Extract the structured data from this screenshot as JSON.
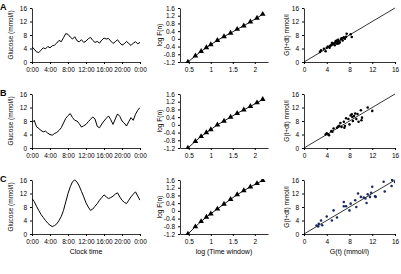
{
  "chart_data": [
    {
      "type": "line",
      "title": "A",
      "y_label": "Glucose (mmol/l)",
      "color": "#000000",
      "x": [
        0,
        0.5,
        1,
        1.5,
        2,
        2.5,
        3,
        3.5,
        4,
        4.5,
        5,
        5.5,
        6,
        6.5,
        7,
        7.5,
        8,
        8.5,
        9,
        9.5,
        10,
        10.5,
        11,
        11.5,
        12,
        12.5,
        13,
        13.5,
        14,
        14.5,
        15,
        15.5,
        16,
        16.5,
        17,
        17.5,
        18,
        18.5,
        19,
        19.5,
        20,
        20.5,
        21,
        21.5,
        22,
        22.5,
        23,
        23.5,
        24
      ],
      "values": [
        4.5,
        3.8,
        3.0,
        2.8,
        3.5,
        4.2,
        3.9,
        4.6,
        4.2,
        4.8,
        5.0,
        5.6,
        6.4,
        6.0,
        7.2,
        8.4,
        8.2,
        7.4,
        6.8,
        7.5,
        6.3,
        6.0,
        6.6,
        5.8,
        6.2,
        6.9,
        7.3,
        6.4,
        5.8,
        6.1,
        5.6,
        6.5,
        7.1,
        6.8,
        7.0,
        6.2,
        5.5,
        6.0,
        6.6,
        5.7,
        5.0,
        5.4,
        6.1,
        5.5,
        4.9,
        5.6,
        6.0,
        5.4,
        5.8
      ],
      "xlim": [
        0,
        24
      ],
      "xticks": [
        {
          "value": 0,
          "label": "0:00"
        },
        {
          "value": 4,
          "label": "4:00"
        },
        {
          "value": 8,
          "label": "8:00"
        },
        {
          "value": 12,
          "label": "12:00"
        },
        {
          "value": 16,
          "label": "16:00"
        },
        {
          "value": 20,
          "label": "20:00"
        },
        {
          "value": 24,
          "label": "0:00"
        }
      ],
      "ylim": [
        0,
        16
      ],
      "yticks": [
        0,
        4,
        8,
        12,
        16
      ]
    },
    {
      "type": "line",
      "y_label": "log F(n)",
      "color": "#000000",
      "marker": "triangle",
      "x": [
        0.48,
        0.65,
        0.78,
        0.9,
        1.0,
        1.15,
        1.3,
        1.45,
        1.6,
        1.75,
        1.9,
        2.05,
        2.18
      ],
      "values": [
        -1.2,
        -0.88,
        -0.65,
        -0.45,
        -0.3,
        -0.08,
        0.12,
        0.3,
        0.5,
        0.68,
        0.88,
        1.08,
        1.28
      ],
      "xlim": [
        0.3,
        2.3
      ],
      "xticks": [
        0.5,
        1,
        1.5,
        2
      ],
      "ylim": [
        -1.2,
        1.6
      ],
      "yticks": [
        -1.2,
        -0.8,
        -0.4,
        0,
        0.4,
        0.8,
        1.2,
        1.6
      ]
    },
    {
      "type": "scatter",
      "y_label": "G(t+dt) mmol/l",
      "color": "#000000",
      "marker": "circle",
      "x": [
        2.8,
        3.0,
        3.5,
        3.8,
        4.0,
        4.2,
        4.5,
        4.6,
        4.8,
        5.0,
        5.2,
        5.4,
        5.5,
        5.6,
        5.8,
        5.8,
        6.0,
        6.0,
        6.2,
        6.3,
        6.5,
        6.6,
        6.8,
        7.0,
        7.2,
        7.4,
        7.5,
        8.2,
        8.4,
        5.0,
        5.6,
        6.1,
        4.9,
        6.9
      ],
      "values": [
        3.0,
        3.5,
        3.9,
        3.2,
        4.2,
        4.6,
        4.2,
        4.8,
        5.0,
        5.6,
        5.5,
        5.0,
        5.8,
        6.1,
        6.4,
        5.4,
        6.0,
        6.6,
        6.1,
        5.8,
        6.8,
        7.0,
        6.4,
        7.3,
        6.9,
        7.5,
        8.4,
        8.2,
        7.4,
        5.4,
        6.2,
        5.5,
        5.6,
        7.1
      ],
      "xlim": [
        0,
        16
      ],
      "xticks": [
        0,
        4,
        8,
        12,
        16
      ],
      "ylim": [
        0,
        16
      ],
      "yticks": [
        0,
        4,
        8,
        12,
        16
      ]
    },
    {
      "type": "line",
      "title": "B",
      "y_label": "Glucose (mmol/l)",
      "color": "#000000",
      "x": [
        0,
        0.5,
        1,
        1.5,
        2,
        2.5,
        3,
        3.5,
        4,
        4.5,
        5,
        5.5,
        6,
        6.5,
        7,
        7.5,
        8,
        8.5,
        9,
        9.5,
        10,
        10.5,
        11,
        11.5,
        12,
        12.5,
        13,
        13.5,
        14,
        14.5,
        15,
        15.5,
        16,
        16.5,
        17,
        17.5,
        18,
        18.5,
        19,
        19.5,
        20,
        20.5,
        21,
        21.5,
        22,
        22.5,
        23,
        23.5,
        24
      ],
      "values": [
        7.5,
        8.2,
        6.3,
        5.8,
        5.2,
        4.8,
        5.0,
        4.4,
        4.0,
        3.8,
        4.3,
        4.6,
        5.2,
        6.0,
        7.4,
        8.8,
        9.6,
        10.2,
        9.0,
        8.2,
        8.0,
        7.2,
        6.2,
        6.6,
        7.0,
        7.8,
        8.5,
        9.2,
        8.6,
        6.4,
        6.0,
        7.1,
        8.0,
        8.8,
        9.5,
        8.4,
        7.0,
        8.6,
        10.1,
        9.4,
        8.0,
        7.4,
        6.5,
        7.8,
        9.0,
        8.2,
        10.0,
        11.2,
        12.0
      ],
      "xlim": [
        0,
        24
      ],
      "xticks": [
        {
          "value": 0,
          "label": "0:00"
        },
        {
          "value": 4,
          "label": "4:00"
        },
        {
          "value": 8,
          "label": "8:00"
        },
        {
          "value": 12,
          "label": "12:00"
        },
        {
          "value": 16,
          "label": "16:00"
        },
        {
          "value": 20,
          "label": "20:00"
        },
        {
          "value": 24,
          "label": "0:00"
        }
      ],
      "ylim": [
        0,
        16
      ],
      "yticks": [
        0,
        4,
        8,
        12,
        16
      ]
    },
    {
      "type": "line",
      "y_label": "log F(n)",
      "color": "#000000",
      "marker": "triangle",
      "x": [
        0.48,
        0.65,
        0.78,
        0.9,
        1.0,
        1.15,
        1.3,
        1.45,
        1.6,
        1.75,
        1.9,
        2.05,
        2.18
      ],
      "values": [
        -1.2,
        -0.85,
        -0.6,
        -0.4,
        -0.24,
        0.0,
        0.2,
        0.4,
        0.6,
        0.78,
        0.96,
        1.15,
        1.32
      ],
      "xlim": [
        0.3,
        2.3
      ],
      "xticks": [
        0.5,
        1,
        1.5,
        2
      ],
      "ylim": [
        -1.2,
        1.6
      ],
      "yticks": [
        -1.2,
        -0.8,
        -0.4,
        0,
        0.4,
        0.8,
        1.2,
        1.6
      ]
    },
    {
      "type": "scatter",
      "y_label": "G(t+dt) mmol/l",
      "color": "#000000",
      "marker": "circle",
      "x": [
        3.8,
        4.0,
        4.3,
        4.4,
        4.8,
        5.0,
        5.2,
        5.8,
        6.0,
        6.2,
        6.4,
        6.6,
        7.0,
        7.1,
        7.4,
        7.8,
        8.0,
        8.2,
        8.5,
        8.6,
        8.8,
        9.0,
        9.2,
        9.4,
        9.6,
        10.0,
        10.1,
        10.2,
        11.2,
        12.0,
        7.2,
        8.4
      ],
      "values": [
        4.0,
        4.4,
        4.0,
        3.8,
        5.0,
        4.8,
        5.8,
        6.0,
        6.4,
        6.6,
        7.4,
        6.2,
        7.8,
        6.0,
        8.8,
        8.6,
        7.0,
        9.6,
        9.2,
        8.0,
        9.5,
        10.2,
        8.6,
        10.1,
        7.8,
        11.2,
        8.2,
        9.0,
        12.0,
        11.0,
        6.5,
        10.0
      ],
      "xlim": [
        0,
        16
      ],
      "xticks": [
        0,
        4,
        8,
        12,
        16
      ],
      "ylim": [
        0,
        16
      ],
      "yticks": [
        0,
        4,
        8,
        12,
        16
      ]
    },
    {
      "type": "line",
      "title": "C",
      "y_label": "Glucose (mmol/l)",
      "x_label": "Clock time",
      "color": "#000000",
      "x": [
        0,
        0.5,
        1,
        1.5,
        2,
        2.5,
        3,
        3.5,
        4,
        4.5,
        5,
        5.5,
        6,
        6.5,
        7,
        7.5,
        8,
        8.5,
        9,
        9.5,
        10,
        10.5,
        11,
        11.5,
        12,
        12.5,
        13,
        13.5,
        14,
        14.5,
        15,
        15.5,
        16,
        16.5,
        17,
        17.5,
        18,
        18.5,
        19,
        19.5,
        20,
        20.5,
        21,
        21.5,
        22,
        22.5,
        23,
        23.5,
        24
      ],
      "values": [
        10.5,
        9.6,
        8.2,
        7.0,
        5.8,
        4.9,
        4.0,
        3.2,
        2.6,
        2.2,
        2.5,
        3.0,
        4.0,
        5.2,
        7.0,
        9.5,
        12.0,
        14.0,
        15.5,
        16.0,
        15.4,
        14.2,
        12.6,
        11.0,
        9.2,
        8.0,
        7.0,
        7.4,
        8.2,
        9.0,
        10.0,
        10.8,
        11.6,
        11.0,
        10.5,
        10.8,
        11.2,
        11.8,
        12.2,
        11.0,
        10.0,
        9.4,
        9.0,
        10.0,
        11.0,
        11.8,
        12.5,
        11.2,
        10.0
      ],
      "xlim": [
        0,
        24
      ],
      "xticks": [
        {
          "value": 0,
          "label": "0:00"
        },
        {
          "value": 4,
          "label": "4:00"
        },
        {
          "value": 8,
          "label": "8:00"
        },
        {
          "value": 12,
          "label": "12:00"
        },
        {
          "value": 16,
          "label": "16:00"
        },
        {
          "value": 20,
          "label": "20:00"
        },
        {
          "value": 24,
          "label": "0:00"
        }
      ],
      "ylim": [
        0,
        16
      ],
      "yticks": [
        0,
        4,
        8,
        12,
        16
      ]
    },
    {
      "type": "line",
      "y_label": "log F(n)",
      "x_label": "log (Time window)",
      "color": "#000000",
      "marker": "triangle",
      "x": [
        0.48,
        0.65,
        0.78,
        0.9,
        1.0,
        1.15,
        1.3,
        1.45,
        1.6,
        1.75,
        1.9,
        2.05,
        2.18
      ],
      "values": [
        -1.2,
        -0.82,
        -0.55,
        -0.32,
        -0.15,
        0.1,
        0.35,
        0.6,
        0.84,
        1.05,
        1.25,
        1.42,
        1.58
      ],
      "xlim": [
        0.3,
        2.3
      ],
      "xticks": [
        0.5,
        1,
        1.5,
        2
      ],
      "ylim": [
        -1.2,
        1.6
      ],
      "yticks": [
        -1.2,
        -0.8,
        -0.4,
        0,
        0.4,
        0.8,
        1.2,
        1.6
      ]
    },
    {
      "type": "scatter",
      "y_label": "G(t+dt) mmol/l",
      "x_label": "G(t) (mmol/l)",
      "color": "#1c2b5e",
      "marker": "circle",
      "x": [
        2.2,
        2.5,
        2.6,
        3.0,
        3.2,
        4.0,
        4.9,
        5.2,
        5.8,
        7.0,
        7.0,
        7.4,
        8.0,
        8.2,
        9.0,
        9.2,
        9.5,
        10.0,
        10.5,
        11.0,
        11.2,
        11.6,
        12.0,
        12.5,
        12.6,
        14.0,
        14.2,
        15.4,
        15.5,
        16.0,
        10.8,
        11.8
      ],
      "values": [
        2.5,
        2.2,
        3.0,
        4.0,
        2.6,
        5.2,
        4.0,
        7.0,
        4.9,
        9.5,
        8.2,
        8.2,
        7.0,
        9.0,
        10.0,
        8.0,
        12.0,
        11.0,
        10.8,
        9.2,
        11.8,
        11.0,
        14.0,
        11.2,
        11.0,
        15.5,
        12.6,
        14.2,
        16.0,
        15.4,
        10.5,
        12.2
      ],
      "xlim": [
        0,
        16
      ],
      "xticks": [
        0,
        4,
        8,
        12,
        16
      ],
      "ylim": [
        0,
        16
      ],
      "yticks": [
        0,
        4,
        8,
        12,
        16
      ]
    }
  ]
}
